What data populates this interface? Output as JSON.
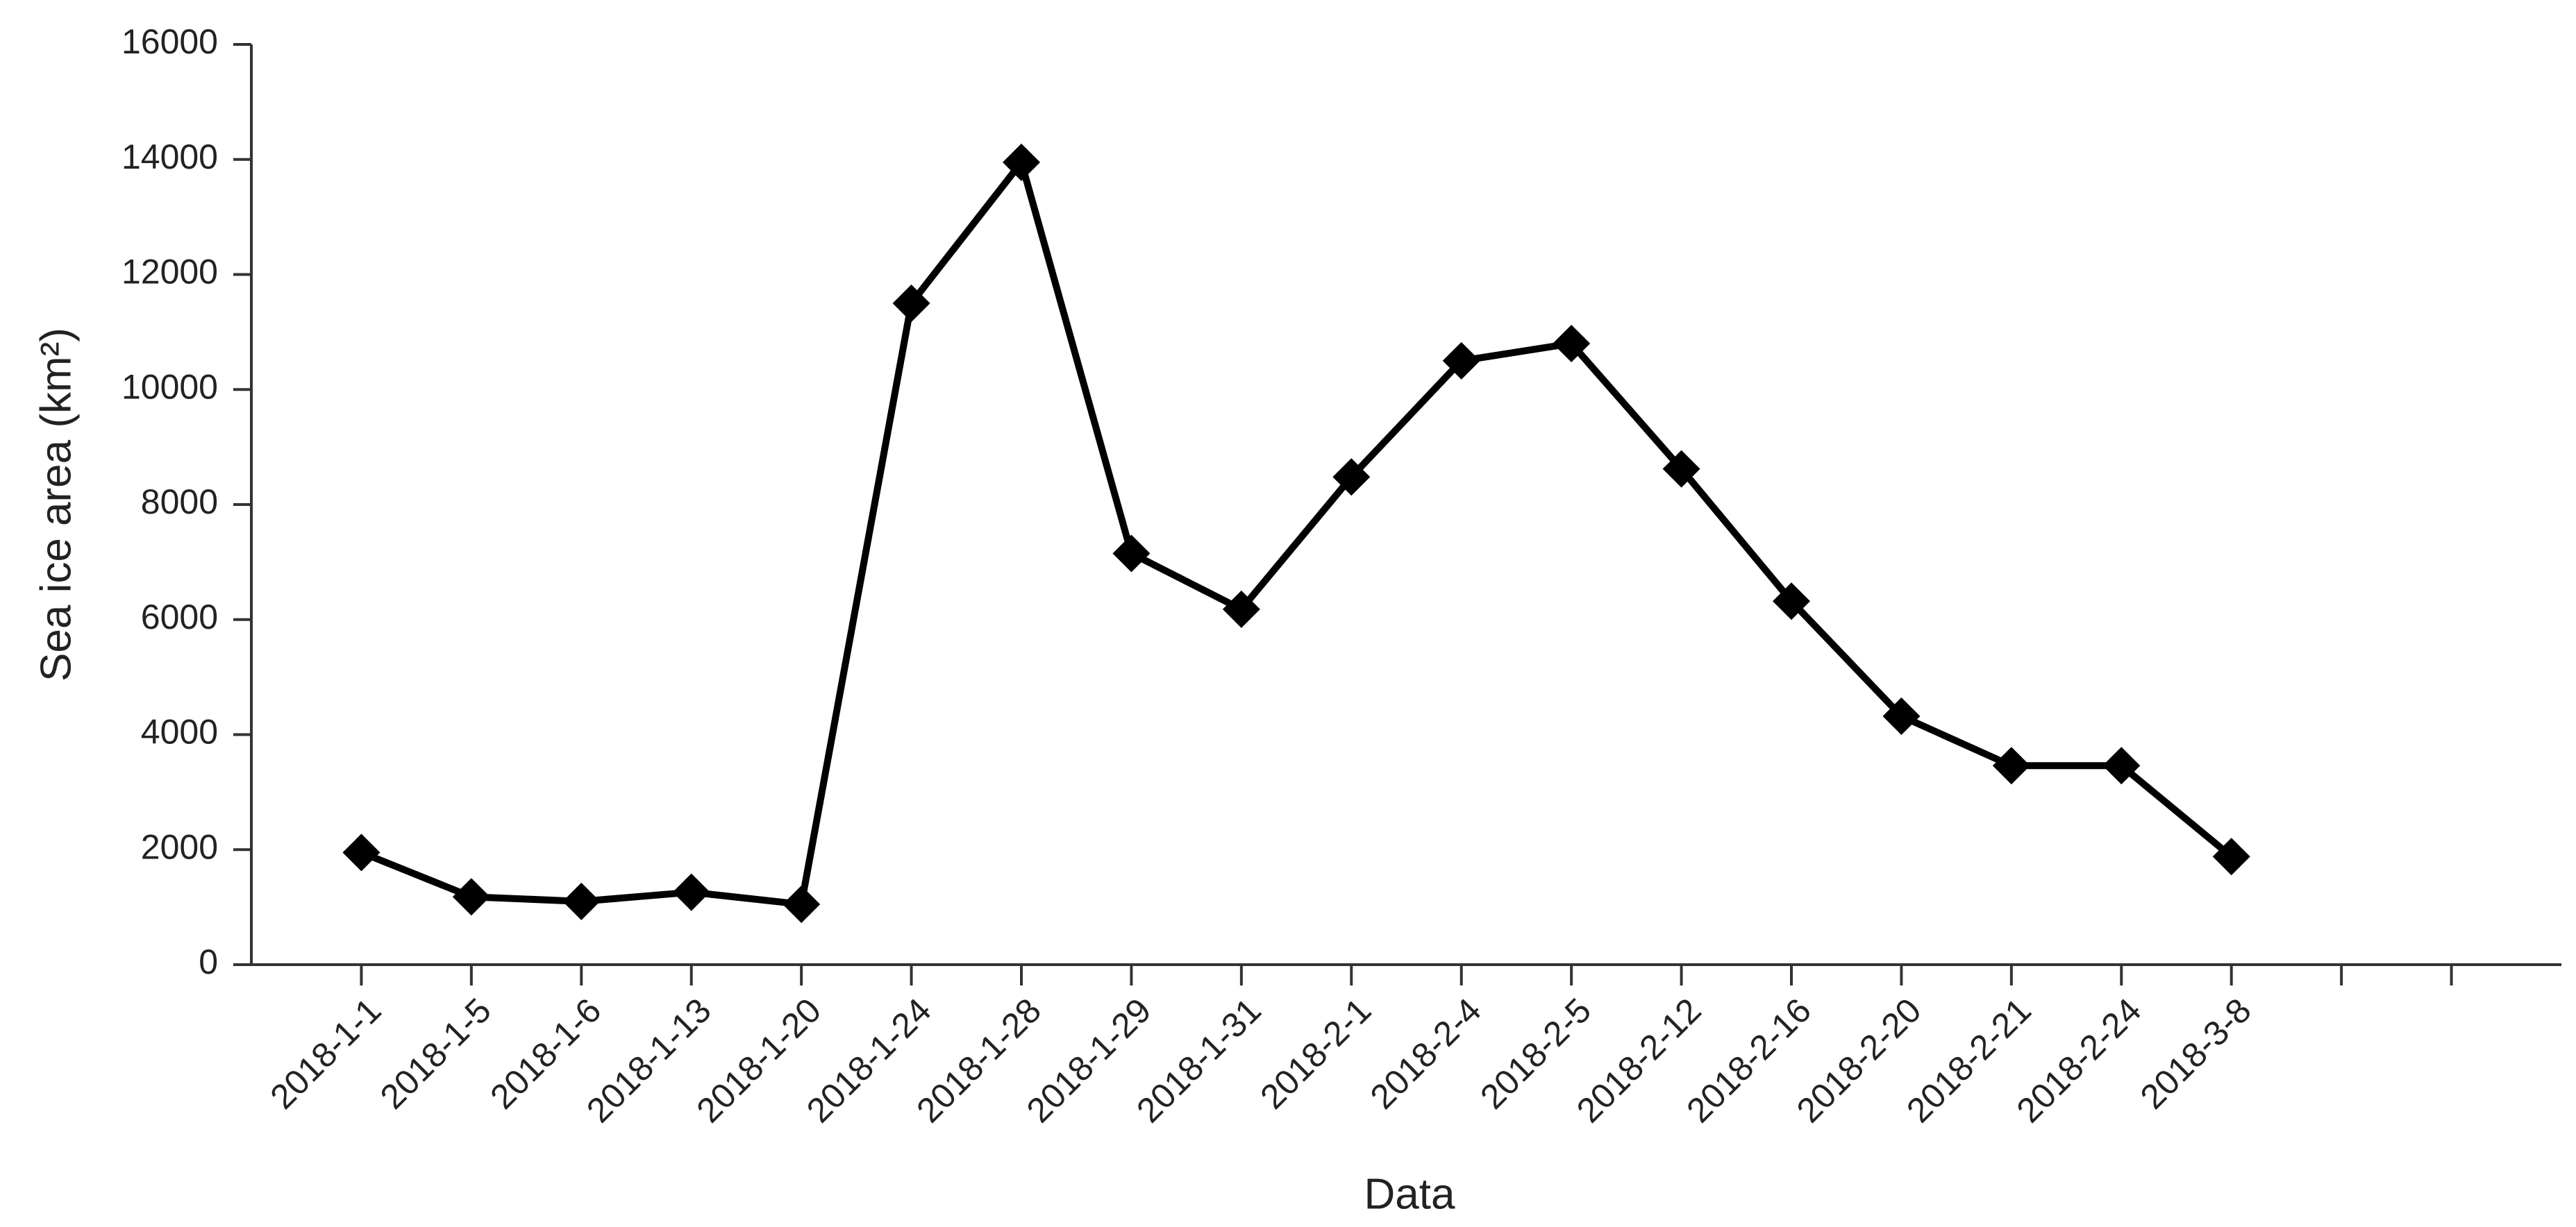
{
  "chart_data": {
    "type": "line",
    "x_label": "Data",
    "y_label": "Sea ice area (km²)",
    "categories": [
      "2018-1-1",
      "2018-1-5",
      "2018-1-6",
      "2018-1-13",
      "2018-1-20",
      "2018-1-24",
      "2018-1-28",
      "2018-1-29",
      "2018-1-31",
      "2018-2-1",
      "2018-2-4",
      "2018-2-5",
      "2018-2-12",
      "2018-2-16",
      "2018-2-20",
      "2018-2-21",
      "2018-2-24",
      "2018-3-8",
      null,
      null
    ],
    "values": [
      1950,
      1180,
      1100,
      1260,
      1050,
      11500,
      13950,
      7150,
      6180,
      8480,
      10500,
      10800,
      8620,
      6320,
      4320,
      3460,
      3460,
      1880,
      null,
      null
    ],
    "color": "#000000",
    "marker": "diamond",
    "ylim": [
      0,
      16000
    ],
    "yticks": [
      0,
      2000,
      4000,
      6000,
      8000,
      10000,
      12000,
      14000,
      16000
    ],
    "grid": false
  }
}
